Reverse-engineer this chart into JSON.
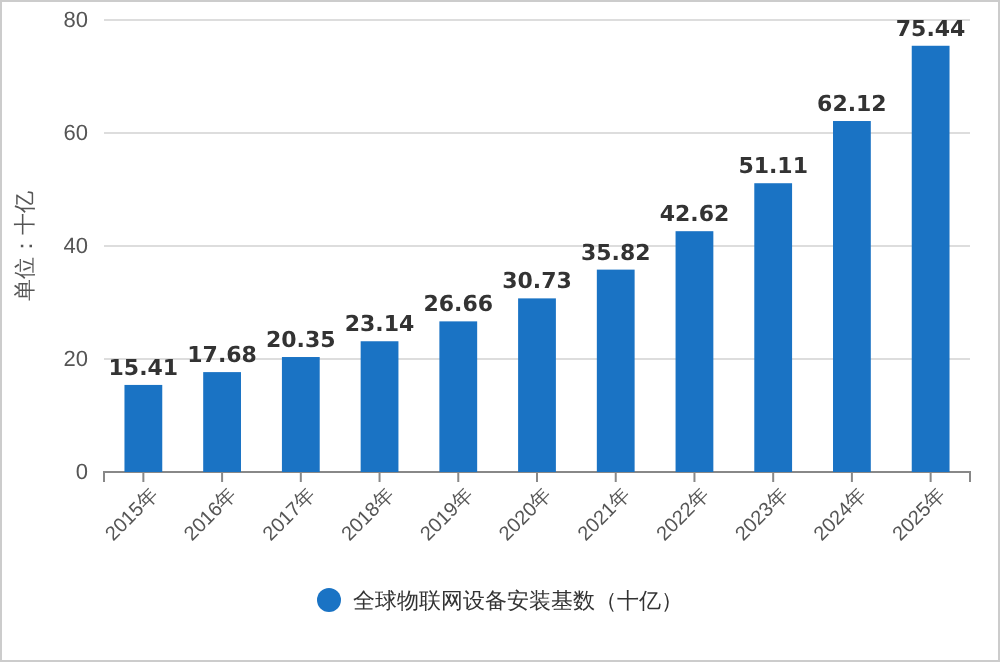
{
  "chart_data": {
    "type": "bar",
    "ylabel": "单位：十亿",
    "categories": [
      "2015年",
      "2016年",
      "2017年",
      "2018年",
      "2019年",
      "2020年",
      "2021年",
      "2022年",
      "2023年",
      "2024年",
      "2025年"
    ],
    "series": [
      {
        "name": "全球物联网设备安装基数（十亿）",
        "color": "#1a73c4",
        "values": [
          15.41,
          17.68,
          20.35,
          23.14,
          26.66,
          30.73,
          35.82,
          42.62,
          51.11,
          62.12,
          75.44
        ]
      }
    ],
    "ylim": [
      0,
      80
    ],
    "yticks": [
      0,
      20,
      40,
      60,
      80
    ],
    "grid": "y",
    "legend": "bottom",
    "data_labels": true
  }
}
